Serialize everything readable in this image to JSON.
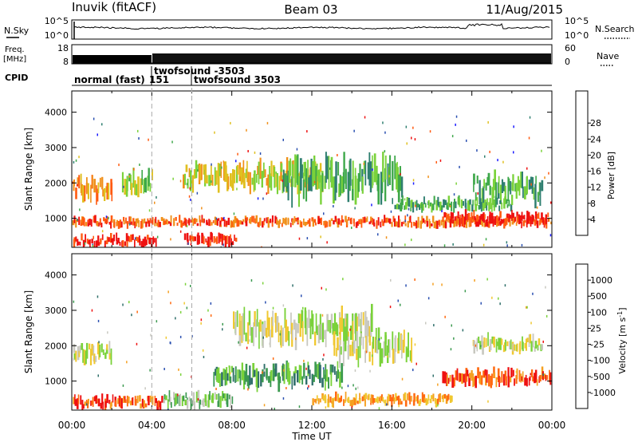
{
  "header": {
    "station": "Inuvik (fitACF)",
    "beam": "Beam 03",
    "date": "11/Aug/2015"
  },
  "summary_panels": {
    "nsky_label": "N.Sky",
    "nsky_ticks": [
      "10^5",
      "10^0"
    ],
    "nsearch_label": "N.Search",
    "freq_label_line1": "Freq.",
    "freq_label_line2": "[MHz]",
    "freq_ticks": [
      "18",
      "8"
    ],
    "nave_label": "Nave",
    "nave_ticks": [
      "60",
      "0"
    ],
    "right_nsky_ticks": [
      "10^5",
      "10^0"
    ],
    "cpid_label": "CPID",
    "cpid_segments": [
      {
        "label": "normal (fast)",
        "start_hour": 0.0
      },
      {
        "label": "151",
        "start_hour": 3.9
      },
      {
        "label": "twofsound -3503",
        "start_hour": 4.0
      },
      {
        "label": "twofsound 3503",
        "start_hour": 6.0
      }
    ]
  },
  "chart_data": [
    {
      "type": "heatmap",
      "name": "power",
      "ylabel": "Slant Range [km]",
      "yticks": [
        "1000",
        "2000",
        "3000",
        "4000"
      ],
      "ylim": [
        180,
        4600
      ],
      "xlim_hours": [
        0,
        24
      ],
      "colorbar_label": "Power [dB]",
      "colorbar_ticks": [
        "4",
        "8",
        "12",
        "16",
        "20",
        "24",
        "28"
      ],
      "colorbar_colors": [
        "#1a1aff",
        "#2a4fb0",
        "#2f7f70",
        "#3ea84a",
        "#7ad23a",
        "#e0c020",
        "#f0901a",
        "#ff5a10",
        "#ee1111"
      ],
      "bands": [
        {
          "t0": 0.0,
          "t1": 4.2,
          "r0": 200,
          "r1": 550,
          "level": 8
        },
        {
          "t0": 5.6,
          "t1": 8.2,
          "r0": 200,
          "r1": 600,
          "level": 8
        },
        {
          "t0": 0.0,
          "t1": 24.0,
          "r0": 750,
          "r1": 1050,
          "level": 7
        },
        {
          "t0": 0.0,
          "t1": 2.0,
          "r0": 1500,
          "r1": 2200,
          "level": 6
        },
        {
          "t0": 2.5,
          "t1": 4.0,
          "r0": 1600,
          "r1": 2400,
          "level": 4
        },
        {
          "t0": 5.5,
          "t1": 12.5,
          "r0": 1800,
          "r1": 2600,
          "level": 5
        },
        {
          "t0": 10.5,
          "t1": 16.5,
          "r0": 1500,
          "r1": 2700,
          "level": 3
        },
        {
          "t0": 20.0,
          "t1": 23.5,
          "r0": 1400,
          "r1": 2300,
          "level": 3
        },
        {
          "t0": 16.0,
          "t1": 22.0,
          "r0": 1200,
          "r1": 1600,
          "level": 3
        },
        {
          "t0": 18.5,
          "t1": 23.8,
          "r0": 800,
          "r1": 1200,
          "level": 8
        }
      ]
    },
    {
      "type": "heatmap",
      "name": "velocity",
      "ylabel": "Slant Range [km]",
      "yticks": [
        "1000",
        "2000",
        "3000",
        "4000"
      ],
      "ylim": [
        180,
        4600
      ],
      "xlim_hours": [
        0,
        24
      ],
      "xticks": [
        "00:00",
        "04:00",
        "08:00",
        "12:00",
        "16:00",
        "20:00",
        "00:00"
      ],
      "xlabel": "Time UT",
      "colorbar_label": "Velocity [m s",
      "colorbar_label_sup": "-1",
      "colorbar_label_end": "]",
      "colorbar_ticks": [
        "-1000",
        "-500",
        "-100",
        "-25",
        "25",
        "100",
        "500",
        "1000"
      ],
      "colorbar_colors": [
        "#ee1111",
        "#ff6a10",
        "#f5a020",
        "#f0c830",
        "#c8c8c0",
        "#7ad23a",
        "#3c9a50",
        "#2f6f6a",
        "#2a4fb0"
      ],
      "bands": [
        {
          "t0": 0.0,
          "t1": 4.5,
          "r0": 200,
          "r1": 600,
          "level": 1
        },
        {
          "t0": 4.5,
          "t1": 8.0,
          "r0": 200,
          "r1": 700,
          "level": 5
        },
        {
          "t0": 7.0,
          "t1": 13.5,
          "r0": 800,
          "r1": 1500,
          "level": 6
        },
        {
          "t0": 8.0,
          "t1": 15.0,
          "r0": 2000,
          "r1": 3000,
          "level": 4
        },
        {
          "t0": 0.0,
          "t1": 2.0,
          "r0": 1500,
          "r1": 2100,
          "level": 4
        },
        {
          "t0": 13.0,
          "t1": 17.0,
          "r0": 1500,
          "r1": 2400,
          "level": 4
        },
        {
          "t0": 18.5,
          "t1": 24.0,
          "r0": 850,
          "r1": 1350,
          "level": 1
        },
        {
          "t0": 20.0,
          "t1": 23.5,
          "r0": 1800,
          "r1": 2300,
          "level": 4
        },
        {
          "t0": 12.0,
          "t1": 19.0,
          "r0": 300,
          "r1": 650,
          "level": 2
        }
      ]
    }
  ]
}
